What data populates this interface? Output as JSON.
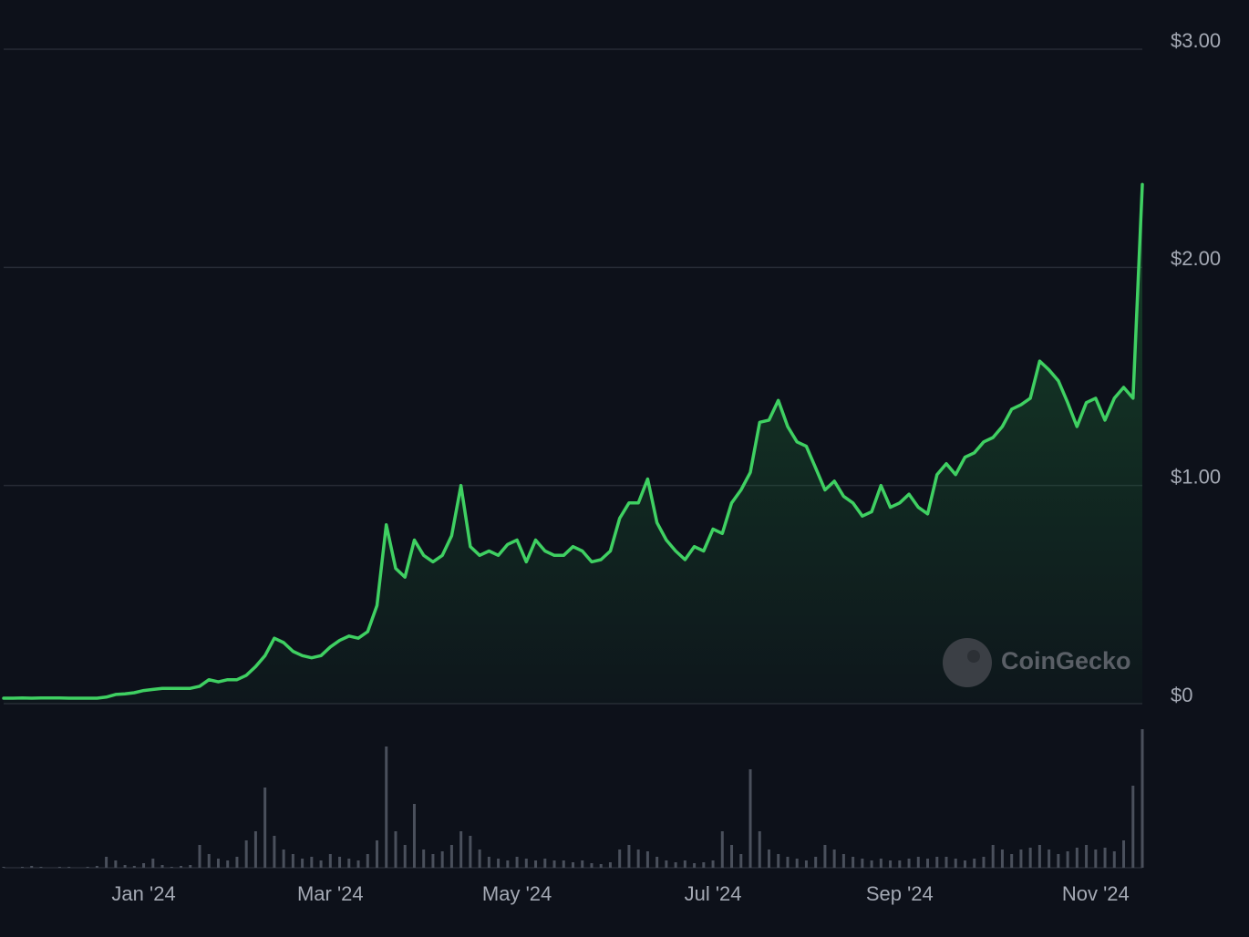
{
  "chart_data": {
    "type": "line",
    "categories": [
      null,
      null,
      null,
      null,
      null,
      null,
      null,
      null,
      null,
      null,
      null,
      null,
      null,
      null,
      null,
      "Jan '24",
      null,
      null,
      null,
      null,
      null,
      null,
      null,
      null,
      null,
      null,
      null,
      null,
      null,
      null,
      null,
      null,
      null,
      null,
      null,
      "Mar '24",
      null,
      null,
      null,
      null,
      null,
      null,
      null,
      null,
      null,
      null,
      null,
      null,
      null,
      null,
      null,
      null,
      null,
      null,
      null,
      "May '24",
      null,
      null,
      null,
      null,
      null,
      null,
      null,
      null,
      null,
      null,
      null,
      null,
      null,
      null,
      null,
      null,
      null,
      null,
      null,
      null,
      "Jul '24",
      null,
      null,
      null,
      null,
      null,
      null,
      null,
      null,
      null,
      null,
      null,
      null,
      null,
      null,
      null,
      null,
      null,
      null,
      null,
      "Sep '24",
      null,
      null,
      null,
      null,
      null,
      null,
      null,
      null,
      null,
      null,
      null,
      null,
      null,
      null,
      null,
      null,
      null,
      null,
      null,
      null,
      "Nov '24",
      null,
      null,
      null,
      null,
      null
    ],
    "series": [
      {
        "color": "#3fd062",
        "values": [
          0.025,
          0.025,
          0.026,
          0.025,
          0.026,
          0.026,
          0.026,
          0.025,
          0.025,
          0.025,
          0.025,
          0.03,
          0.042,
          0.045,
          0.05,
          0.06,
          0.065,
          0.07,
          0.07,
          0.07,
          0.07,
          0.08,
          0.11,
          0.1,
          0.11,
          0.11,
          0.13,
          0.17,
          0.22,
          0.3,
          0.28,
          0.24,
          0.22,
          0.21,
          0.22,
          0.26,
          0.29,
          0.31,
          0.3,
          0.33,
          0.45,
          0.82,
          0.62,
          0.58,
          0.75,
          0.68,
          0.65,
          0.68,
          0.77,
          1.0,
          0.72,
          0.68,
          0.7,
          0.68,
          0.73,
          0.75,
          0.65,
          0.75,
          0.7,
          0.68,
          0.68,
          0.72,
          0.7,
          0.65,
          0.66,
          0.7,
          0.85,
          0.92,
          0.92,
          1.03,
          0.83,
          0.75,
          0.7,
          0.66,
          0.72,
          0.7,
          0.8,
          0.78,
          0.92,
          0.98,
          1.06,
          1.29,
          1.3,
          1.39,
          1.27,
          1.2,
          1.18,
          1.08,
          0.98,
          1.02,
          0.95,
          0.92,
          0.86,
          0.88,
          1.0,
          0.9,
          0.92,
          0.96,
          0.9,
          0.87,
          1.05,
          1.1,
          1.05,
          1.13,
          1.15,
          1.2,
          1.22,
          1.27,
          1.35,
          1.37,
          1.4,
          1.57,
          1.53,
          1.48,
          1.38,
          1.27,
          1.38,
          1.4,
          1.3,
          1.4,
          1.45,
          1.4,
          2.38
        ]
      }
    ],
    "volume": {
      "color": "#4a505c",
      "values": [
        1,
        0,
        1,
        2,
        1,
        0,
        1,
        1,
        0,
        1,
        2,
        12,
        8,
        3,
        2,
        5,
        10,
        3,
        1,
        2,
        3,
        25,
        15,
        10,
        8,
        12,
        30,
        40,
        88,
        35,
        20,
        15,
        10,
        12,
        8,
        15,
        12,
        10,
        8,
        15,
        30,
        133,
        40,
        25,
        70,
        20,
        15,
        18,
        25,
        40,
        35,
        20,
        12,
        10,
        8,
        12,
        10,
        8,
        10,
        8,
        8,
        6,
        8,
        5,
        4,
        6,
        20,
        25,
        20,
        18,
        12,
        8,
        6,
        8,
        5,
        6,
        8,
        40,
        25,
        15,
        108,
        40,
        20,
        15,
        12,
        10,
        8,
        12,
        25,
        20,
        15,
        12,
        10,
        8,
        10,
        8,
        8,
        10,
        12,
        10,
        12,
        12,
        10,
        8,
        10,
        12,
        25,
        20,
        15,
        20,
        22,
        25,
        20,
        15,
        18,
        22,
        25,
        20,
        22,
        18,
        30,
        90,
        152
      ]
    },
    "volume_lim": [
      0,
      160
    ],
    "ylim": [
      0,
      3
    ],
    "yticks": [
      {
        "value": 0,
        "label": "$0"
      },
      {
        "value": 1,
        "label": "$1.00"
      },
      {
        "value": 2,
        "label": "$2.00"
      },
      {
        "value": 3,
        "label": "$3.00"
      }
    ],
    "grid": true,
    "watermark": "CoinGecko"
  }
}
